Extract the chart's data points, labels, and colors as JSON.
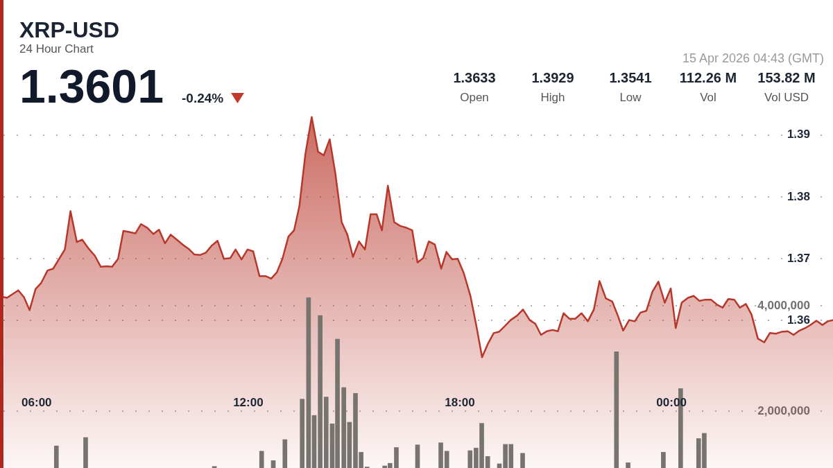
{
  "chart_data": {
    "type": "area",
    "title": "XRP-USD",
    "subtitle": "24 Hour Chart",
    "annotations": [
      "1.3601",
      "-0.24%",
      "1.3633",
      "Open",
      "1.3929",
      "High",
      "1.3541",
      "Low",
      "112.26 M",
      "Vol",
      "153.82 M",
      "Vol USD",
      "15 Apr 2026 04:43 (GMT)"
    ],
    "xlim": [
      5.06,
      28.58
    ],
    "xticks": [
      {
        "value": 6,
        "label": "06:00"
      },
      {
        "value": 12,
        "label": "12:00"
      },
      {
        "value": 18,
        "label": "18:00"
      },
      {
        "value": 24,
        "label": "00:00"
      }
    ],
    "ylim": [
      1.3362,
      1.4118
    ],
    "yticks": [
      {
        "value": 1.36,
        "label": "1.36"
      },
      {
        "value": 1.37,
        "label": "1.37"
      },
      {
        "value": 1.38,
        "label": "1.38"
      },
      {
        "value": 1.39,
        "label": "1.39"
      }
    ],
    "y2lim": [
      920000,
      9820000
    ],
    "y2ticks": [
      {
        "value": 2000000,
        "label": "2,000,000"
      },
      {
        "value": 4000000,
        "label": "4,000,000"
      }
    ],
    "grid": "y",
    "series": [
      {
        "color": "#b8372b",
        "x": [
          5.07,
          5.16,
          5.48,
          5.64,
          5.8,
          5.97,
          6.13,
          6.31,
          6.47,
          6.64,
          6.8,
          6.96,
          7.14,
          7.29,
          7.48,
          7.65,
          7.82,
          7.98,
          8.14,
          8.31,
          8.46,
          8.64,
          8.8,
          8.96,
          9.14,
          9.31,
          9.47,
          9.64,
          9.8,
          9.97,
          10.14,
          10.31,
          10.47,
          10.63,
          10.8,
          10.96,
          11.13,
          11.31,
          11.49,
          11.64,
          11.81,
          11.98,
          12.14,
          12.32,
          12.49,
          12.65,
          12.81,
          12.97,
          13.14,
          13.3,
          13.45,
          13.62,
          13.8,
          13.98,
          14.14,
          14.31,
          14.47,
          14.65,
          14.81,
          14.97,
          15.14,
          15.31,
          15.47,
          15.64,
          15.79,
          15.96,
          16.14,
          16.31,
          16.49,
          16.65,
          16.8,
          16.96,
          17.12,
          17.29,
          17.47,
          17.62,
          17.78,
          17.94,
          18.11,
          18.3,
          18.47,
          18.63,
          18.79,
          18.96,
          19.11,
          19.27,
          19.44,
          19.62,
          19.79,
          19.98,
          20.14,
          20.3,
          20.47,
          20.63,
          20.78,
          20.94,
          21.11,
          21.27,
          21.45,
          21.63,
          21.8,
          21.96,
          22.14,
          22.32,
          22.48,
          22.63,
          22.8,
          22.96,
          23.12,
          23.29,
          23.46,
          23.63,
          23.81,
          23.98,
          24.12,
          24.29,
          24.47,
          24.63,
          24.79,
          24.96,
          25.12,
          25.29,
          25.45,
          25.61,
          25.78,
          25.94,
          26.11,
          26.27,
          26.45,
          26.63,
          26.79,
          26.96,
          27.12,
          27.3,
          27.46,
          27.63,
          27.79,
          27.94,
          28.11,
          28.28,
          28.43,
          28.58
        ],
        "values": [
          1.3638,
          1.3637,
          1.3649,
          1.3638,
          1.3617,
          1.3651,
          1.3661,
          1.3681,
          1.3684,
          1.37,
          1.3715,
          1.3777,
          1.3727,
          1.3731,
          1.3716,
          1.3705,
          1.3687,
          1.3688,
          1.3687,
          1.37,
          1.3745,
          1.3743,
          1.3741,
          1.3756,
          1.375,
          1.374,
          1.3747,
          1.3725,
          1.3739,
          1.3731,
          1.3723,
          1.3716,
          1.3707,
          1.3706,
          1.371,
          1.3721,
          1.3729,
          1.37,
          1.3701,
          1.3715,
          1.3699,
          1.3715,
          1.3712,
          1.3672,
          1.3672,
          1.3668,
          1.3678,
          1.37,
          1.3736,
          1.3746,
          1.3785,
          1.3869,
          1.3929,
          1.3873,
          1.3867,
          1.3893,
          1.3838,
          1.3759,
          1.3739,
          1.3703,
          1.3728,
          1.3715,
          1.3772,
          1.3772,
          1.3746,
          1.3818,
          1.3759,
          1.3753,
          1.375,
          1.3746,
          1.3694,
          1.3701,
          1.3728,
          1.3723,
          1.3684,
          1.3711,
          1.3699,
          1.37,
          1.3677,
          1.364,
          1.3591,
          1.3541,
          1.3562,
          1.358,
          1.3582,
          1.3591,
          1.3601,
          1.3608,
          1.3618,
          1.3601,
          1.3595,
          1.3577,
          1.3583,
          1.3585,
          1.3583,
          1.3612,
          1.3603,
          1.3603,
          1.3612,
          1.3599,
          1.3618,
          1.3664,
          1.3636,
          1.3631,
          1.3608,
          1.3584,
          1.3601,
          1.3599,
          1.3613,
          1.3616,
          1.3647,
          1.3663,
          1.3629,
          1.3652,
          1.3588,
          1.3629,
          1.3637,
          1.364,
          1.3632,
          1.3634,
          1.3634,
          1.3626,
          1.3621,
          1.3635,
          1.3634,
          1.3621,
          1.3627,
          1.361,
          1.3571,
          1.3565,
          1.358,
          1.3579,
          1.3582,
          1.3583,
          1.3577,
          1.3584,
          1.3588,
          1.3593,
          1.36,
          1.3593,
          1.3599,
          1.3601
        ]
      },
      {
        "type": "bar",
        "axis": "y2",
        "color": "#77736f",
        "x": [
          6.56,
          7.39,
          11.04,
          12.38,
          12.71,
          13.04,
          13.53,
          13.71,
          13.87,
          14.04,
          14.21,
          14.38,
          14.53,
          14.71,
          14.87,
          15.04,
          15.2,
          15.37,
          15.87,
          16.02,
          16.2,
          16.8,
          17.46,
          17.63,
          18.29,
          18.46,
          18.62,
          18.79,
          19.12,
          19.29,
          19.45,
          19.78,
          22.44,
          22.77,
          23.77,
          24.26,
          24.77,
          24.93
        ],
        "values": [
          1340000,
          1500000,
          950000,
          1240000,
          1060000,
          1460000,
          2230000,
          4160000,
          1920000,
          3820000,
          2270000,
          1760000,
          3370000,
          2450000,
          1790000,
          2340000,
          1220000,
          940000,
          960000,
          1010000,
          1310000,
          1360000,
          1400000,
          1240000,
          1250000,
          1300000,
          1770000,
          1140000,
          1000000,
          1370000,
          1370000,
          1200000,
          3130000,
          1020000,
          1220000,
          2430000,
          1480000,
          1580000
        ]
      }
    ]
  }
}
